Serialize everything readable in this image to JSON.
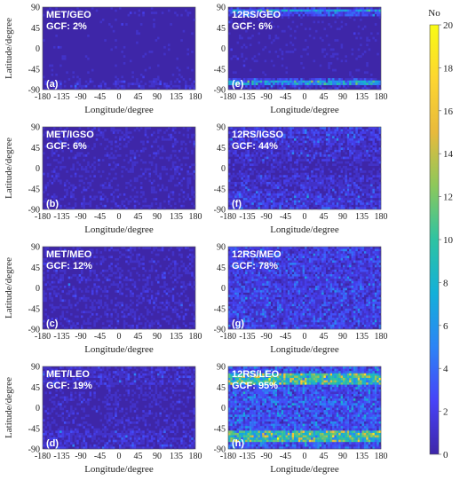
{
  "chart_data": [
    {
      "type": "heatmap",
      "panel": "(a)",
      "title": "MET/GEO",
      "subtitle": "GCF: 2%",
      "xlabel": "Longitude/degree",
      "ylabel": "Latitude/degree",
      "xlim": [
        -180,
        180
      ],
      "ylim": [
        -90,
        90
      ],
      "xticks": [
        "-180",
        "-135",
        "-90",
        "-45",
        "0",
        "45",
        "90",
        "135",
        "180"
      ],
      "yticks": [
        "90",
        "45",
        "0",
        "-45",
        "-90"
      ],
      "density": [
        {
          "lat": [
            -90,
            -70
          ],
          "level": 0.5
        },
        {
          "lat": [
            -70,
            70
          ],
          "level": 0.05
        },
        {
          "lat": [
            70,
            90
          ],
          "level": 0.15
        }
      ]
    },
    {
      "type": "heatmap",
      "panel": "(b)",
      "title": "MET/IGSO",
      "subtitle": "GCF: 6%",
      "xlabel": "Longitude/degree",
      "ylabel": "Latitude/degree",
      "xlim": [
        -180,
        180
      ],
      "ylim": [
        -90,
        90
      ],
      "xticks": [
        "-180",
        "-135",
        "-90",
        "-45",
        "0",
        "45",
        "90",
        "135",
        "180"
      ],
      "yticks": [
        "90",
        "45",
        "0",
        "-45",
        "-90"
      ],
      "density": [
        {
          "lat": [
            -90,
            90
          ],
          "level": 0.3
        }
      ]
    },
    {
      "type": "heatmap",
      "panel": "(c)",
      "title": "MET/MEO",
      "subtitle": "GCF: 12%",
      "xlabel": "Longitude/degree",
      "ylabel": "Latitude/degree",
      "xlim": [
        -180,
        180
      ],
      "ylim": [
        -90,
        90
      ],
      "xticks": [
        "-180",
        "-135",
        "-90",
        "-45",
        "0",
        "45",
        "90",
        "135",
        "180"
      ],
      "yticks": [
        "90",
        "45",
        "0",
        "-45",
        "-90"
      ],
      "density": [
        {
          "lat": [
            -90,
            90
          ],
          "level": 0.4
        }
      ]
    },
    {
      "type": "heatmap",
      "panel": "(d)",
      "title": "MET/LEO",
      "subtitle": "GCF: 19%",
      "xlabel": "Longitude/degree",
      "ylabel": "Latitude/degree",
      "xlim": [
        -180,
        180
      ],
      "ylim": [
        -90,
        90
      ],
      "xticks": [
        "-180",
        "-135",
        "-90",
        "-45",
        "0",
        "45",
        "90",
        "135",
        "180"
      ],
      "yticks": [
        "90",
        "45",
        "0",
        "-45",
        "-90"
      ],
      "density": [
        {
          "lat": [
            -90,
            -50
          ],
          "level": 1.0
        },
        {
          "lat": [
            -50,
            50
          ],
          "level": 0.4
        },
        {
          "lat": [
            50,
            90
          ],
          "level": 0.9
        }
      ]
    },
    {
      "type": "heatmap",
      "panel": "(e)",
      "title": "12RS/GEO",
      "subtitle": "GCF: 6%",
      "xlabel": "Longitude/degree",
      "ylabel": "",
      "xlim": [
        -180,
        180
      ],
      "ylim": [
        -90,
        90
      ],
      "xticks": [
        "-180",
        "-135",
        "-90",
        "-45",
        "0",
        "45",
        "90",
        "135",
        "180"
      ],
      "yticks": [
        "90",
        "45",
        "0",
        "-45",
        "-90"
      ],
      "density": [
        {
          "lat": [
            -90,
            -80
          ],
          "level": 0.8
        },
        {
          "lat": [
            -80,
            -72
          ],
          "level": 6.0
        },
        {
          "lat": [
            -72,
            -64
          ],
          "level": 2.0
        },
        {
          "lat": [
            -64,
            70
          ],
          "level": 0.1
        },
        {
          "lat": [
            70,
            78
          ],
          "level": 2.5
        },
        {
          "lat": [
            78,
            85
          ],
          "level": 6.0
        },
        {
          "lat": [
            85,
            90
          ],
          "level": 1.0
        }
      ]
    },
    {
      "type": "heatmap",
      "panel": "(f)",
      "title": "12RS/IGSO",
      "subtitle": "GCF: 44%",
      "xlabel": "Longitude/degree",
      "ylabel": "",
      "xlim": [
        -180,
        180
      ],
      "ylim": [
        -90,
        90
      ],
      "xticks": [
        "-180",
        "-135",
        "-90",
        "-45",
        "0",
        "45",
        "90",
        "135",
        "180"
      ],
      "yticks": [
        "90",
        "45",
        "0",
        "-45",
        "-90"
      ],
      "density": [
        {
          "lat": [
            -90,
            -55
          ],
          "level": 1.6
        },
        {
          "lat": [
            -55,
            -15
          ],
          "level": 1.0
        },
        {
          "lat": [
            -15,
            15
          ],
          "level": 0.5
        },
        {
          "lat": [
            15,
            55
          ],
          "level": 1.0
        },
        {
          "lat": [
            55,
            90
          ],
          "level": 1.6
        }
      ]
    },
    {
      "type": "heatmap",
      "panel": "(g)",
      "title": "12RS/MEO",
      "subtitle": "GCF: 78%",
      "xlabel": "Longitude/degree",
      "ylabel": "",
      "xlim": [
        -180,
        180
      ],
      "ylim": [
        -90,
        90
      ],
      "xticks": [
        "-180",
        "-135",
        "-90",
        "-45",
        "0",
        "45",
        "90",
        "135",
        "180"
      ],
      "yticks": [
        "90",
        "45",
        "0",
        "-45",
        "-90"
      ],
      "density": [
        {
          "lat": [
            -90,
            90
          ],
          "level": 2.0
        }
      ]
    },
    {
      "type": "heatmap",
      "panel": "(h)",
      "title": "12RS/LEO",
      "subtitle": "GCF: 95%",
      "xlabel": "Longitude/degree",
      "ylabel": "",
      "xlim": [
        -180,
        180
      ],
      "ylim": [
        -90,
        90
      ],
      "xticks": [
        "-180",
        "-135",
        "-90",
        "-45",
        "0",
        "45",
        "90",
        "135",
        "180"
      ],
      "yticks": [
        "90",
        "45",
        "0",
        "-45",
        "-90"
      ],
      "density": [
        {
          "lat": [
            -90,
            -75
          ],
          "level": 3.0
        },
        {
          "lat": [
            -75,
            -50
          ],
          "level": 10.0
        },
        {
          "lat": [
            -50,
            50
          ],
          "level": 3.0
        },
        {
          "lat": [
            50,
            75
          ],
          "level": 10.0
        },
        {
          "lat": [
            75,
            90
          ],
          "level": 3.0
        }
      ]
    }
  ],
  "colorbar": {
    "title": "No",
    "min": 0,
    "max": 20,
    "ticks": [
      "0",
      "2",
      "4",
      "6",
      "8",
      "10",
      "12",
      "14",
      "16",
      "18",
      "20"
    ],
    "colors": [
      "#3e26a8",
      "#4743f8",
      "#2c84f6",
      "#13b0d9",
      "#2ec3a2",
      "#8cc85b",
      "#e8ba3c",
      "#fdd630",
      "#f9fb14"
    ]
  }
}
